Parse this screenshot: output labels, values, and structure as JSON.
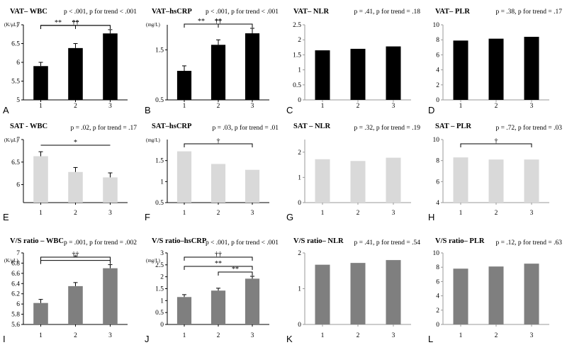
{
  "figure": {
    "panels": [
      {
        "letter": "A",
        "title": "VAT– WBC",
        "stat": "p < .001, p for trend < .001",
        "unit": "(K/μL)"
      },
      {
        "letter": "B",
        "title": "VAT–hsCRP",
        "stat": "p < .001, p for trend < .001",
        "unit": "(mg/L)"
      },
      {
        "letter": "C",
        "title": "VAT– NLR",
        "stat": "p = .41, p for trend = .18",
        "unit": ""
      },
      {
        "letter": "D",
        "title": "VAT– PLR",
        "stat": "p = .38, p for trend = .17",
        "unit": ""
      },
      {
        "letter": "E",
        "title": "SAT - WBC",
        "stat": "p = .02, p for trend = .17",
        "unit": "(K/μL)"
      },
      {
        "letter": "F",
        "title": "SAT–hsCRP",
        "stat": "p = .03, p for trend = .01",
        "unit": "(mg/L)"
      },
      {
        "letter": "G",
        "title": "SAT – NLR",
        "stat": "p = .32, p for trend = .19",
        "unit": ""
      },
      {
        "letter": "H",
        "title": "SAT – PLR",
        "stat": "p = .72, p for trend = .03",
        "unit": ""
      },
      {
        "letter": "I",
        "title": "V/S ratio – WBC",
        "stat": "p = .001, p for trend = .002",
        "unit": "(K/μL)"
      },
      {
        "letter": "J",
        "title": "V/S ratio–hsCRP",
        "stat": "p < .001, p for trend < .001",
        "unit": "(mg/L)"
      },
      {
        "letter": "K",
        "title": "V/S ratio– NLR",
        "stat": "p = .41, p for trend = .54",
        "unit": ""
      },
      {
        "letter": "L",
        "title": "V/S ratio– PLR",
        "stat": "p = .12, p for trend = .63",
        "unit": ""
      }
    ]
  },
  "colors": {
    "vat": "#000000",
    "sat": "#d9d9d9",
    "vs_ratio": "#7f7f7f",
    "axis": "#888888"
  },
  "chart_data": [
    {
      "type": "bar",
      "panel": "A",
      "categories": [
        "1",
        "2",
        "3"
      ],
      "values": [
        5.9,
        6.38,
        6.77
      ],
      "errors": [
        0.1,
        0.12,
        0.1
      ],
      "ylim": [
        5,
        7
      ],
      "yticks": [
        "5",
        "5.5",
        "6",
        "6.5",
        "7"
      ],
      "ytick_values": [
        5,
        5.5,
        6,
        6.5,
        7
      ],
      "color": "vat",
      "axis_style": "full",
      "annotations": [
        {
          "from": 1,
          "to": 3,
          "label": "††"
        },
        {
          "from": 1,
          "to": 3,
          "label": "**"
        },
        {
          "from": 1,
          "to": 2,
          "label": "**"
        }
      ]
    },
    {
      "type": "bar",
      "panel": "B",
      "categories": [
        "1",
        "2",
        "3"
      ],
      "values": [
        1.08,
        1.6,
        1.83
      ],
      "errors": [
        0.1,
        0.1,
        0.1
      ],
      "ylim": [
        0.5,
        2
      ],
      "yticks": [
        "0.5",
        "1.5"
      ],
      "ytick_values": [
        0.5,
        1.5
      ],
      "color": "vat",
      "axis_style": "full",
      "annotations": [
        {
          "from": 1,
          "to": 3,
          "label": "††"
        },
        {
          "from": 1,
          "to": 3,
          "label": "**"
        },
        {
          "from": 1,
          "to": 2,
          "label": "**"
        }
      ]
    },
    {
      "type": "bar",
      "panel": "C",
      "categories": [
        "1",
        "2",
        "3"
      ],
      "values": [
        1.65,
        1.7,
        1.78
      ],
      "errors": [
        0,
        0,
        0
      ],
      "ylim": [
        0,
        2.5
      ],
      "yticks": [
        "0",
        "0.5",
        "1",
        "1.5",
        "2",
        "2.5"
      ],
      "ytick_values": [
        0,
        0.5,
        1,
        1.5,
        2,
        2.5
      ],
      "color": "vat",
      "axis_style": "light",
      "annotations": []
    },
    {
      "type": "bar",
      "panel": "D",
      "categories": [
        "1",
        "2",
        "3"
      ],
      "values": [
        7.9,
        8.15,
        8.4
      ],
      "errors": [
        0,
        0,
        0
      ],
      "ylim": [
        0,
        10
      ],
      "yticks": [
        "0",
        "2",
        "4",
        "6",
        "8",
        "10"
      ],
      "ytick_values": [
        0,
        2,
        4,
        6,
        8,
        10
      ],
      "color": "vat",
      "axis_style": "light",
      "annotations": []
    },
    {
      "type": "bar",
      "panel": "E",
      "categories": [
        "1",
        "2",
        "3"
      ],
      "values": [
        6.63,
        6.28,
        6.16
      ],
      "errors": [
        0.1,
        0.1,
        0.1
      ],
      "ylim": [
        5.6,
        7
      ],
      "yticks": [
        "6",
        "6.5",
        "7"
      ],
      "ytick_values": [
        6,
        6.5,
        7
      ],
      "color": "sat",
      "axis_style": "full",
      "annotations": [
        {
          "from": 1,
          "to": 3,
          "label": "*",
          "type": "line"
        }
      ]
    },
    {
      "type": "bar",
      "panel": "F",
      "categories": [
        "1",
        "2",
        "3"
      ],
      "values": [
        1.72,
        1.42,
        1.28
      ],
      "errors": [
        0,
        0,
        0
      ],
      "ylim": [
        0.5,
        2
      ],
      "yticks": [
        "0.5",
        "1",
        "1.5"
      ],
      "ytick_values": [
        0.5,
        1,
        1.5
      ],
      "color": "sat",
      "axis_style": "full",
      "annotations": [
        {
          "from": 1,
          "to": 3,
          "label": "†"
        }
      ]
    },
    {
      "type": "bar",
      "panel": "G",
      "categories": [
        "1",
        "2",
        "3"
      ],
      "values": [
        1.72,
        1.65,
        1.78
      ],
      "errors": [
        0,
        0,
        0
      ],
      "ylim": [
        0,
        2.5
      ],
      "yticks": [
        "0",
        "1",
        "2"
      ],
      "ytick_values": [
        0,
        1,
        2
      ],
      "color": "sat",
      "axis_style": "light",
      "annotations": []
    },
    {
      "type": "bar",
      "panel": "H",
      "categories": [
        "1",
        "2",
        "3"
      ],
      "values": [
        8.3,
        8.1,
        8.1
      ],
      "errors": [
        0,
        0,
        0
      ],
      "ylim": [
        4,
        10
      ],
      "yticks": [
        "4",
        "6",
        "8",
        "10"
      ],
      "ytick_values": [
        4,
        6,
        8,
        10
      ],
      "color": "sat",
      "axis_style": "light",
      "annotations": [
        {
          "from": 1,
          "to": 3,
          "label": "†"
        }
      ]
    },
    {
      "type": "bar",
      "panel": "I",
      "categories": [
        "1",
        "2",
        "3"
      ],
      "values": [
        6.02,
        6.35,
        6.7
      ],
      "errors": [
        0.07,
        0.07,
        0.07
      ],
      "ylim": [
        5.6,
        7
      ],
      "yticks": [
        "5.6",
        "5.8",
        "6",
        "6.2",
        "6.4",
        "6.6",
        "6.8",
        "7"
      ],
      "ytick_values": [
        5.6,
        5.8,
        6,
        6.2,
        6.4,
        6.6,
        6.8,
        7
      ],
      "color": "vs_ratio",
      "axis_style": "full",
      "annotations": [
        {
          "from": 1,
          "to": 3,
          "label": "††"
        },
        {
          "from": 1,
          "to": 3,
          "label": "*"
        }
      ]
    },
    {
      "type": "bar",
      "panel": "J",
      "categories": [
        "1",
        "2",
        "3"
      ],
      "values": [
        1.15,
        1.42,
        1.92
      ],
      "errors": [
        0.1,
        0.1,
        0.1
      ],
      "ylim": [
        0,
        3
      ],
      "yticks": [
        "0",
        "0.5",
        "1",
        "1.5",
        "2",
        "2.5",
        "3"
      ],
      "ytick_values": [
        0,
        0.5,
        1,
        1.5,
        2,
        2.5,
        3
      ],
      "color": "vs_ratio",
      "axis_style": "full",
      "annotations": [
        {
          "from": 1,
          "to": 3,
          "label": "††"
        },
        {
          "from": 1,
          "to": 3,
          "label": "**"
        },
        {
          "from": 2,
          "to": 3,
          "label": "**"
        }
      ]
    },
    {
      "type": "bar",
      "panel": "K",
      "categories": [
        "1",
        "2",
        "3"
      ],
      "values": [
        1.67,
        1.72,
        1.8
      ],
      "errors": [
        0,
        0,
        0
      ],
      "ylim": [
        0,
        2
      ],
      "yticks": [
        "0",
        "1",
        "2"
      ],
      "ytick_values": [
        0,
        1,
        2
      ],
      "color": "vs_ratio",
      "axis_style": "light",
      "annotations": []
    },
    {
      "type": "bar",
      "panel": "L",
      "categories": [
        "1",
        "2",
        "3"
      ],
      "values": [
        7.8,
        8.1,
        8.5
      ],
      "errors": [
        0,
        0,
        0
      ],
      "ylim": [
        0,
        10
      ],
      "yticks": [
        "0",
        "2",
        "4",
        "6",
        "8",
        "10"
      ],
      "ytick_values": [
        0,
        2,
        4,
        6,
        8,
        10
      ],
      "color": "vs_ratio",
      "axis_style": "light",
      "annotations": []
    }
  ]
}
